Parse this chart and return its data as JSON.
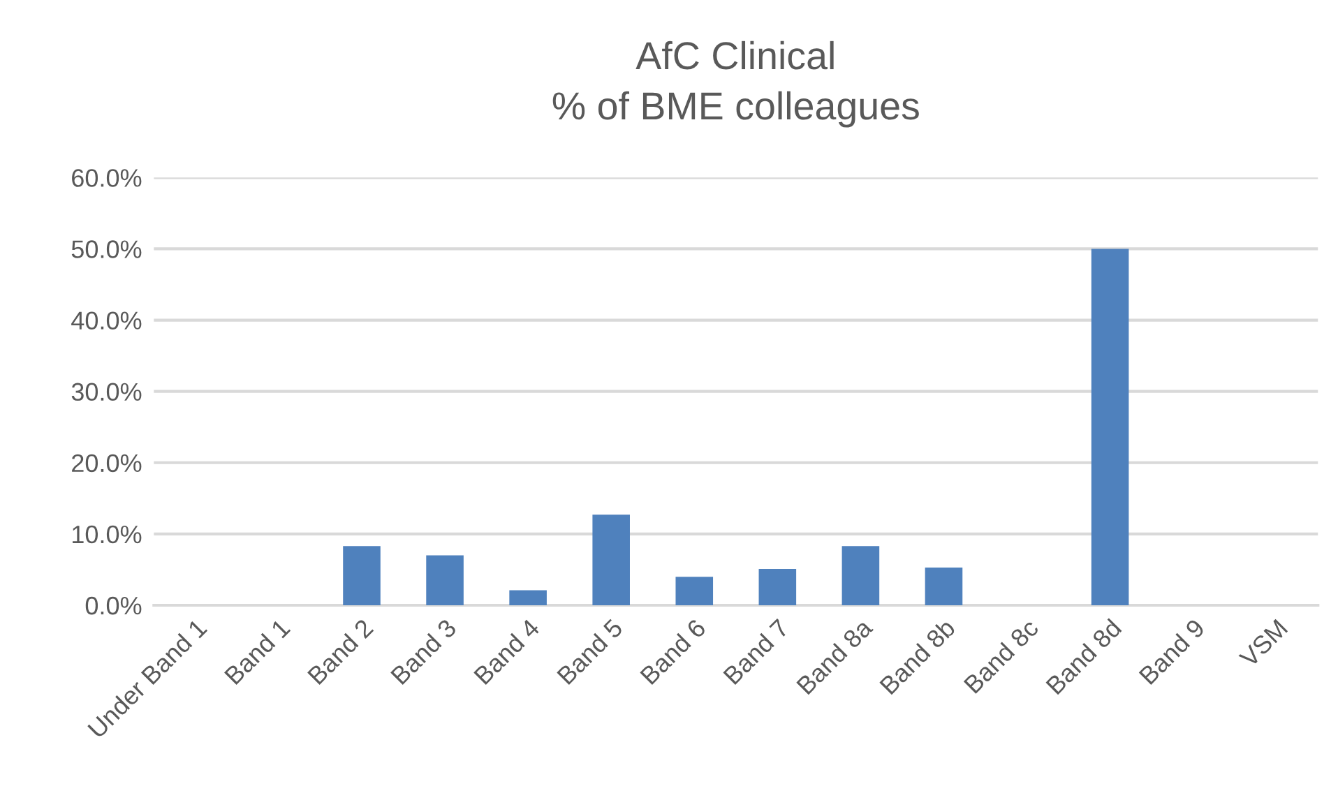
{
  "chart_data": {
    "type": "bar",
    "title": "AfC Clinical\n% of BME colleagues",
    "categories": [
      "Under Band 1",
      "Band 1",
      "Band 2",
      "Band 3",
      "Band 4",
      "Band 5",
      "Band 6",
      "Band 7",
      "Band 8a",
      "Band 8b",
      "Band 8c",
      "Band 8d",
      "Band 9",
      "VSM"
    ],
    "values": [
      0,
      0,
      8.3,
      7.0,
      2.1,
      12.7,
      4.0,
      5.1,
      8.3,
      5.3,
      0,
      50.0,
      0,
      0
    ],
    "color": "#4f81bd",
    "ylim": [
      0,
      60
    ],
    "yticks": [
      {
        "value": 0,
        "label": "0.0%"
      },
      {
        "value": 10,
        "label": "10.0%"
      },
      {
        "value": 20,
        "label": "20.0%"
      },
      {
        "value": 30,
        "label": "30.0%"
      },
      {
        "value": 40,
        "label": "40.0%"
      },
      {
        "value": 50,
        "label": "50.0%"
      },
      {
        "value": 60,
        "label": "60.0%"
      }
    ],
    "grid": "y"
  }
}
